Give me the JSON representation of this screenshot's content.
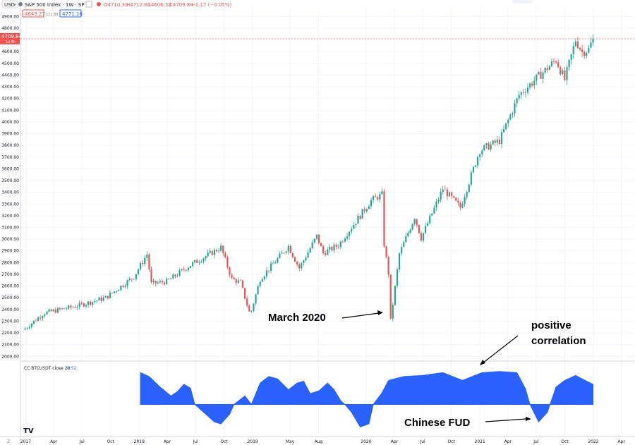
{
  "header": {
    "currency": "USD",
    "symbol_title": "S&P 500 Index · 1W · SP",
    "ohlc": {
      "open": "O4710.30",
      "high": "H4712.60",
      "low": "L4606.52",
      "close": "C4709.84",
      "change": "−2.17 (−0.05%)"
    },
    "sell_value": "4649.27",
    "spread": "121.89",
    "buy_value": "4771.16"
  },
  "price_label": {
    "value": "4709.84",
    "countdown": "1d 8h"
  },
  "indicator_label": {
    "name": "CC BTCUSDT close 20",
    "value": "0.52"
  },
  "annotations": {
    "march": "March 2020",
    "positive_line1": "positive",
    "positive_line2": "correlation",
    "fud": "Chinese FUD"
  },
  "colors": {
    "up": "#26a69a",
    "down": "#ef5350",
    "indicator": "#2962ff",
    "grid": "#f0f3fa",
    "price_line": "#ef5350"
  },
  "chart_data": [
    {
      "type": "candlestick",
      "title": "S&P 500 Index",
      "timeframe": "1W",
      "y_ticks": [
        2000,
        2100,
        2200,
        2300,
        2400,
        2500,
        2600,
        2700,
        2800,
        2900,
        3000,
        3100,
        3200,
        3300,
        3400,
        3500,
        3600,
        3700,
        3800,
        3900,
        4000,
        4100,
        4200,
        4300,
        4400,
        4500,
        4600,
        4700,
        4800,
        4900
      ],
      "ylim": [
        1960,
        4980
      ],
      "x_ticks": [
        "2017",
        "Apr",
        "Jul",
        "Oct",
        "2018",
        "Apr",
        "Jul",
        "Oct",
        "2019",
        "May",
        "Aug",
        "2020",
        "Apr",
        "Jul",
        "Oct",
        "2021",
        "Apr",
        "Jul",
        "Oct",
        "2022",
        "Apr"
      ],
      "x_tick_dates": [
        "2017-01-01",
        "2017-04-01",
        "2017-07-01",
        "2017-10-01",
        "2018-01-01",
        "2018-04-01",
        "2018-07-01",
        "2018-10-01",
        "2019-01-01",
        "2019-05-01",
        "2019-08-01",
        "2020-01-01",
        "2020-04-01",
        "2020-07-01",
        "2020-10-01",
        "2021-01-01",
        "2021-04-01",
        "2021-07-01",
        "2021-10-01",
        "2022-01-01",
        "2022-04-01"
      ],
      "xlim": [
        "2016-12-15",
        "2022-05-15"
      ],
      "first_week": "2016-12-30",
      "close_keypoints": [
        [
          "2016-12-30",
          2238
        ],
        [
          "2017-03-01",
          2370
        ],
        [
          "2017-06-15",
          2430
        ],
        [
          "2017-09-15",
          2500
        ],
        [
          "2017-12-15",
          2680
        ],
        [
          "2018-01-26",
          2872
        ],
        [
          "2018-02-09",
          2620
        ],
        [
          "2018-04-01",
          2640
        ],
        [
          "2018-06-15",
          2780
        ],
        [
          "2018-09-21",
          2929
        ],
        [
          "2018-10-26",
          2660
        ],
        [
          "2018-11-23",
          2630
        ],
        [
          "2018-12-24",
          2351
        ],
        [
          "2019-01-25",
          2660
        ],
        [
          "2019-04-26",
          2940
        ],
        [
          "2019-05-31",
          2752
        ],
        [
          "2019-07-26",
          3025
        ],
        [
          "2019-08-16",
          2880
        ],
        [
          "2019-10-04",
          2950
        ],
        [
          "2020-01-17",
          3330
        ],
        [
          "2020-02-21",
          3380
        ],
        [
          "2020-02-28",
          2954
        ],
        [
          "2020-03-13",
          2711
        ],
        [
          "2020-03-20",
          2304
        ],
        [
          "2020-04-17",
          2875
        ],
        [
          "2020-06-05",
          3190
        ],
        [
          "2020-06-26",
          3010
        ],
        [
          "2020-09-04",
          3430
        ],
        [
          "2020-10-30",
          3270
        ],
        [
          "2020-12-31",
          3756
        ],
        [
          "2021-03-05",
          3840
        ],
        [
          "2021-05-07",
          4230
        ],
        [
          "2021-09-03",
          4530
        ],
        [
          "2021-10-01",
          4360
        ],
        [
          "2021-11-05",
          4700
        ],
        [
          "2021-11-26",
          4595
        ],
        [
          "2021-12-17",
          4620
        ],
        [
          "2021-12-31",
          4709
        ]
      ],
      "last_close": 4709.84
    },
    {
      "type": "area",
      "title": "CC BTCUSDT close 20",
      "baseline": 0,
      "ylim": [
        -0.7,
        0.9
      ],
      "last_value": 0.52,
      "points": [
        [
          "2018-01-05",
          0.82
        ],
        [
          "2018-02-02",
          0.72
        ],
        [
          "2018-03-09",
          0.45
        ],
        [
          "2018-04-13",
          0.22
        ],
        [
          "2018-05-04",
          0.33
        ],
        [
          "2018-05-25",
          0.52
        ],
        [
          "2018-06-15",
          0.42
        ],
        [
          "2018-06-29",
          0.0
        ],
        [
          "2018-07-27",
          -0.2
        ],
        [
          "2018-08-31",
          -0.45
        ],
        [
          "2018-09-21",
          -0.5
        ],
        [
          "2018-10-19",
          -0.25
        ],
        [
          "2018-11-02",
          0.0
        ],
        [
          "2018-12-07",
          0.22
        ],
        [
          "2018-12-28",
          0.0
        ],
        [
          "2019-01-25",
          0.55
        ],
        [
          "2019-02-22",
          0.72
        ],
        [
          "2019-03-22",
          0.66
        ],
        [
          "2019-04-26",
          0.38
        ],
        [
          "2019-05-24",
          0.55
        ],
        [
          "2019-06-14",
          0.6
        ],
        [
          "2019-07-05",
          0.28
        ],
        [
          "2019-08-02",
          0.35
        ],
        [
          "2019-08-30",
          0.55
        ],
        [
          "2019-09-20",
          0.38
        ],
        [
          "2019-10-11",
          0.1
        ],
        [
          "2019-10-25",
          0.0
        ],
        [
          "2019-11-15",
          -0.2
        ],
        [
          "2019-12-13",
          -0.58
        ],
        [
          "2020-01-10",
          -0.5
        ],
        [
          "2020-01-24",
          0.0
        ],
        [
          "2020-02-21",
          0.3
        ],
        [
          "2020-03-13",
          0.62
        ],
        [
          "2020-05-01",
          0.72
        ],
        [
          "2020-07-03",
          0.75
        ],
        [
          "2020-09-04",
          0.82
        ],
        [
          "2020-11-06",
          0.62
        ],
        [
          "2021-01-08",
          0.82
        ],
        [
          "2021-03-05",
          0.85
        ],
        [
          "2021-04-30",
          0.82
        ],
        [
          "2021-05-28",
          0.4
        ],
        [
          "2021-06-11",
          0.0
        ],
        [
          "2021-07-09",
          -0.45
        ],
        [
          "2021-08-06",
          -0.2
        ],
        [
          "2021-09-03",
          0.45
        ],
        [
          "2021-10-01",
          0.62
        ],
        [
          "2021-11-05",
          0.75
        ],
        [
          "2021-12-10",
          0.6
        ],
        [
          "2021-12-31",
          0.52
        ]
      ]
    }
  ]
}
